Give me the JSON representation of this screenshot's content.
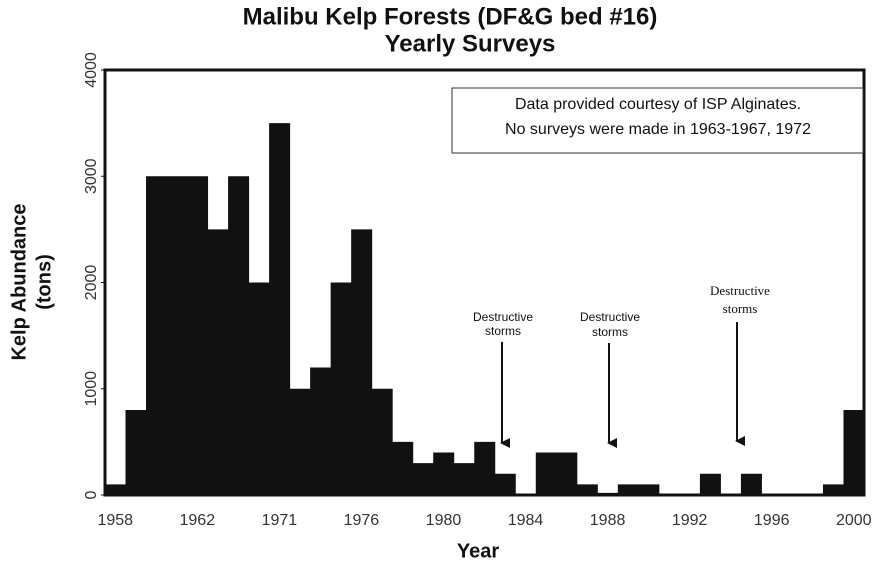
{
  "chart_data": {
    "type": "bar",
    "title": [
      "Malibu Kelp Forests (DF&G bed #16)",
      "Yearly Surveys"
    ],
    "xlabel": "Year",
    "ylabel": [
      "Kelp Abundance",
      "(tons)"
    ],
    "note": [
      "Data provided courtesy of ISP Alginates.",
      "No surveys were made in 1963-1967, 1972"
    ],
    "annotations": [
      [
        "Destructive",
        "storms"
      ],
      [
        "Destructive",
        "storms"
      ],
      [
        "Destructive",
        "storms"
      ]
    ],
    "categories": [
      "1958",
      null,
      null,
      null,
      "1962",
      null,
      null,
      null,
      "1971",
      null,
      null,
      null,
      "1976",
      null,
      null,
      null,
      "1980",
      null,
      null,
      null,
      "1984",
      null,
      null,
      null,
      "1988",
      null,
      null,
      null,
      "1992",
      null,
      null,
      null,
      "1996",
      null,
      null,
      null,
      "2000"
    ],
    "values": [
      100,
      800,
      3000,
      3000,
      3000,
      2500,
      3000,
      2000,
      3500,
      1000,
      1200,
      2000,
      2500,
      1000,
      500,
      300,
      400,
      300,
      500,
      200,
      10,
      400,
      400,
      100,
      20,
      100,
      100,
      10,
      10,
      200,
      10,
      200,
      0,
      0,
      0,
      100,
      800
    ],
    "color": "#111111",
    "ylim": [
      0,
      4000
    ],
    "yticks": [
      0,
      1000,
      2000,
      3000,
      4000
    ]
  }
}
